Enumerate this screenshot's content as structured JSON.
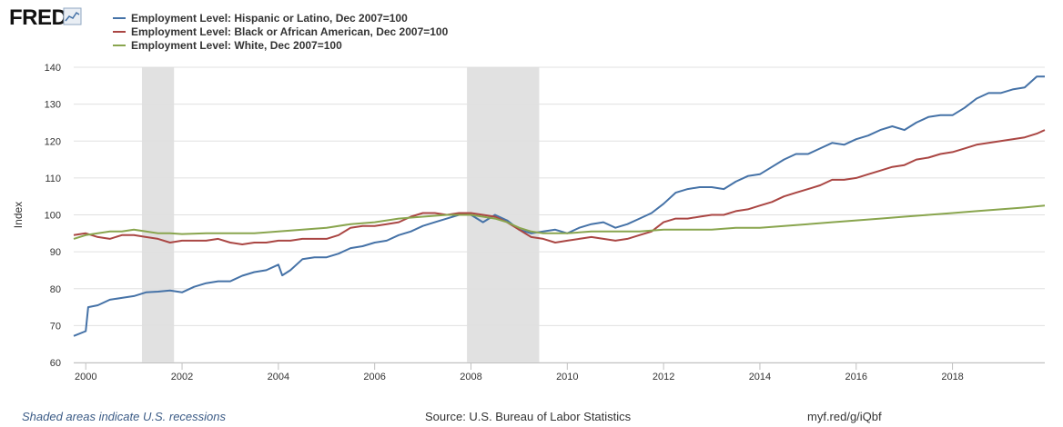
{
  "brand": "FRED",
  "footer": {
    "recession_note": "Shaded areas indicate U.S. recessions",
    "source": "Source: U.S. Bureau of Labor Statistics",
    "link": "myf.red/g/iQbf"
  },
  "chart_data": {
    "type": "line",
    "title": "",
    "xlabel": "",
    "ylabel": "Index",
    "xlim": [
      1999.75,
      2019.917
    ],
    "ylim": [
      60,
      140
    ],
    "yticks": [
      60,
      70,
      80,
      90,
      100,
      110,
      120,
      130,
      140
    ],
    "xticks": [
      2000,
      2002,
      2004,
      2006,
      2008,
      2010,
      2012,
      2014,
      2016,
      2018
    ],
    "recessions": [
      [
        2001.167,
        2001.833
      ],
      [
        2007.917,
        2009.417
      ]
    ],
    "series": [
      {
        "name": "Employment Level: Hispanic or Latino, Dec 2007=100",
        "color": "#4572a7",
        "x": [
          1999.75,
          2000.0,
          2000.05,
          2000.25,
          2000.5,
          2000.75,
          2001.0,
          2001.25,
          2001.5,
          2001.75,
          2002.0,
          2002.25,
          2002.5,
          2002.75,
          2003.0,
          2003.25,
          2003.5,
          2003.75,
          2004.0,
          2004.08,
          2004.25,
          2004.5,
          2004.75,
          2005.0,
          2005.25,
          2005.5,
          2005.75,
          2006.0,
          2006.25,
          2006.5,
          2006.75,
          2007.0,
          2007.25,
          2007.5,
          2007.75,
          2008.0,
          2008.25,
          2008.5,
          2008.75,
          2009.0,
          2009.25,
          2009.5,
          2009.75,
          2010.0,
          2010.25,
          2010.5,
          2010.75,
          2011.0,
          2011.25,
          2011.5,
          2011.75,
          2012.0,
          2012.25,
          2012.5,
          2012.75,
          2013.0,
          2013.25,
          2013.5,
          2013.75,
          2014.0,
          2014.25,
          2014.5,
          2014.75,
          2015.0,
          2015.25,
          2015.5,
          2015.75,
          2016.0,
          2016.25,
          2016.5,
          2016.75,
          2017.0,
          2017.25,
          2017.5,
          2017.75,
          2018.0,
          2018.25,
          2018.5,
          2018.75,
          2019.0,
          2019.25,
          2019.5,
          2019.75,
          2019.917
        ],
        "values": [
          67.2,
          68.5,
          75.0,
          75.5,
          77.0,
          77.5,
          78.0,
          79.0,
          79.2,
          79.5,
          79.0,
          80.5,
          81.5,
          82.0,
          82.0,
          83.5,
          84.5,
          85.0,
          86.5,
          83.6,
          85.0,
          88.0,
          88.5,
          88.5,
          89.5,
          91.0,
          91.5,
          92.5,
          93.0,
          94.5,
          95.5,
          97.0,
          98.0,
          99.0,
          100.0,
          100.0,
          98.0,
          100.0,
          98.5,
          96.0,
          95.0,
          95.5,
          96.0,
          95.0,
          96.5,
          97.5,
          98.0,
          96.5,
          97.5,
          99.0,
          100.5,
          103.0,
          106.0,
          107.0,
          107.5,
          107.5,
          107.0,
          109.0,
          110.5,
          111.0,
          113.0,
          115.0,
          116.5,
          116.5,
          118.0,
          119.5,
          119.0,
          120.5,
          121.5,
          123.0,
          124.0,
          123.0,
          125.0,
          126.5,
          127.0,
          127.0,
          129.0,
          131.5,
          133.0,
          133.0,
          134.0,
          134.5,
          137.5,
          137.5
        ]
      },
      {
        "name": "Employment Level: Black or African American, Dec 2007=100",
        "color": "#aa4643",
        "x": [
          1999.75,
          2000.0,
          2000.25,
          2000.5,
          2000.75,
          2001.0,
          2001.25,
          2001.5,
          2001.75,
          2002.0,
          2002.25,
          2002.5,
          2002.75,
          2003.0,
          2003.25,
          2003.5,
          2003.75,
          2004.0,
          2004.25,
          2004.5,
          2004.75,
          2005.0,
          2005.25,
          2005.5,
          2005.75,
          2006.0,
          2006.25,
          2006.5,
          2006.75,
          2007.0,
          2007.25,
          2007.5,
          2007.75,
          2008.0,
          2008.25,
          2008.5,
          2008.75,
          2009.0,
          2009.25,
          2009.5,
          2009.75,
          2010.0,
          2010.25,
          2010.5,
          2010.75,
          2011.0,
          2011.25,
          2011.5,
          2011.75,
          2012.0,
          2012.25,
          2012.5,
          2012.75,
          2013.0,
          2013.25,
          2013.5,
          2013.75,
          2014.0,
          2014.25,
          2014.5,
          2014.75,
          2015.0,
          2015.25,
          2015.5,
          2015.75,
          2016.0,
          2016.25,
          2016.5,
          2016.75,
          2017.0,
          2017.25,
          2017.5,
          2017.75,
          2018.0,
          2018.25,
          2018.5,
          2018.75,
          2019.0,
          2019.25,
          2019.5,
          2019.75,
          2019.917
        ],
        "values": [
          94.5,
          95.0,
          94.0,
          93.5,
          94.5,
          94.5,
          94.0,
          93.5,
          92.5,
          93.0,
          93.0,
          93.0,
          93.5,
          92.5,
          92.0,
          92.5,
          92.5,
          93.0,
          93.0,
          93.5,
          93.5,
          93.5,
          94.5,
          96.5,
          97.0,
          97.0,
          97.5,
          98.0,
          99.5,
          100.5,
          100.5,
          100.0,
          100.5,
          100.5,
          100.0,
          99.5,
          98.0,
          96.0,
          94.0,
          93.5,
          92.5,
          93.0,
          93.5,
          94.0,
          93.5,
          93.0,
          93.5,
          94.5,
          95.5,
          98.0,
          99.0,
          99.0,
          99.5,
          100.0,
          100.0,
          101.0,
          101.5,
          102.5,
          103.5,
          105.0,
          106.0,
          107.0,
          108.0,
          109.5,
          109.5,
          110.0,
          111.0,
          112.0,
          113.0,
          113.5,
          115.0,
          115.5,
          116.5,
          117.0,
          118.0,
          119.0,
          119.5,
          120.0,
          120.5,
          121.0,
          122.0,
          123.0
        ]
      },
      {
        "name": "Employment Level: White, Dec 2007=100",
        "color": "#89a54e",
        "x": [
          1999.75,
          2000.0,
          2000.25,
          2000.5,
          2000.75,
          2001.0,
          2001.25,
          2001.5,
          2001.75,
          2002.0,
          2002.5,
          2003.0,
          2003.5,
          2004.0,
          2004.5,
          2005.0,
          2005.5,
          2006.0,
          2006.5,
          2007.0,
          2007.5,
          2007.75,
          2008.0,
          2008.25,
          2008.5,
          2008.75,
          2009.0,
          2009.25,
          2009.5,
          2009.75,
          2010.0,
          2010.5,
          2011.0,
          2011.5,
          2012.0,
          2012.5,
          2013.0,
          2013.5,
          2014.0,
          2014.5,
          2015.0,
          2015.5,
          2016.0,
          2016.5,
          2017.0,
          2017.5,
          2018.0,
          2018.5,
          2019.0,
          2019.5,
          2019.917
        ],
        "values": [
          93.5,
          94.5,
          95.0,
          95.5,
          95.5,
          96.0,
          95.5,
          95.0,
          95.0,
          94.8,
          95.0,
          95.0,
          95.0,
          95.5,
          96.0,
          96.5,
          97.5,
          98.0,
          99.0,
          99.5,
          100.0,
          100.0,
          100.0,
          99.5,
          99.0,
          98.0,
          96.5,
          95.5,
          95.0,
          95.0,
          95.0,
          95.5,
          95.5,
          95.5,
          96.0,
          96.0,
          96.0,
          96.5,
          96.5,
          97.0,
          97.5,
          98.0,
          98.5,
          99.0,
          99.5,
          100.0,
          100.5,
          101.0,
          101.5,
          102.0,
          102.5
        ]
      }
    ]
  }
}
